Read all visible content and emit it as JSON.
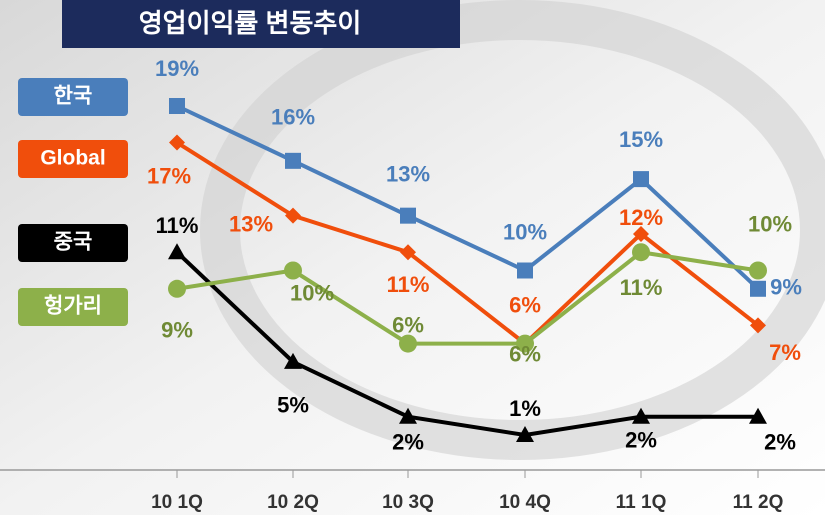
{
  "chart_data": {
    "type": "line",
    "title": "영업이익률 변동추이",
    "categories": [
      "10 1Q",
      "10 2Q",
      "10 3Q",
      "10 4Q",
      "11 1Q",
      "11 2Q"
    ],
    "series": [
      {
        "name": "한국",
        "color": "#4a7ebb",
        "marker": "square",
        "values": [
          19,
          16,
          13,
          10,
          15,
          9
        ],
        "value_labels": [
          "19%",
          "16%",
          "13%",
          "10%",
          "15%",
          "9%"
        ]
      },
      {
        "name": "Global",
        "color": "#f04e0c",
        "marker": "diamond",
        "values": [
          17,
          13,
          11,
          6,
          12,
          7
        ],
        "value_labels": [
          "17%",
          "13%",
          "11%",
          "6%",
          "12%",
          "7%"
        ]
      },
      {
        "name": "중국",
        "color": "#000000",
        "marker": "triangle",
        "values": [
          11,
          5,
          2,
          1,
          2,
          2
        ],
        "value_labels": [
          "11%",
          "5%",
          "2%",
          "1%",
          "2%",
          "2%"
        ]
      },
      {
        "name": "헝가리",
        "color": "#8db04a",
        "marker": "circle",
        "values": [
          9,
          10,
          6,
          6,
          11,
          10
        ],
        "value_labels": [
          "9%",
          "10%",
          "6%",
          "6%",
          "11%",
          "10%"
        ]
      }
    ]
  }
}
